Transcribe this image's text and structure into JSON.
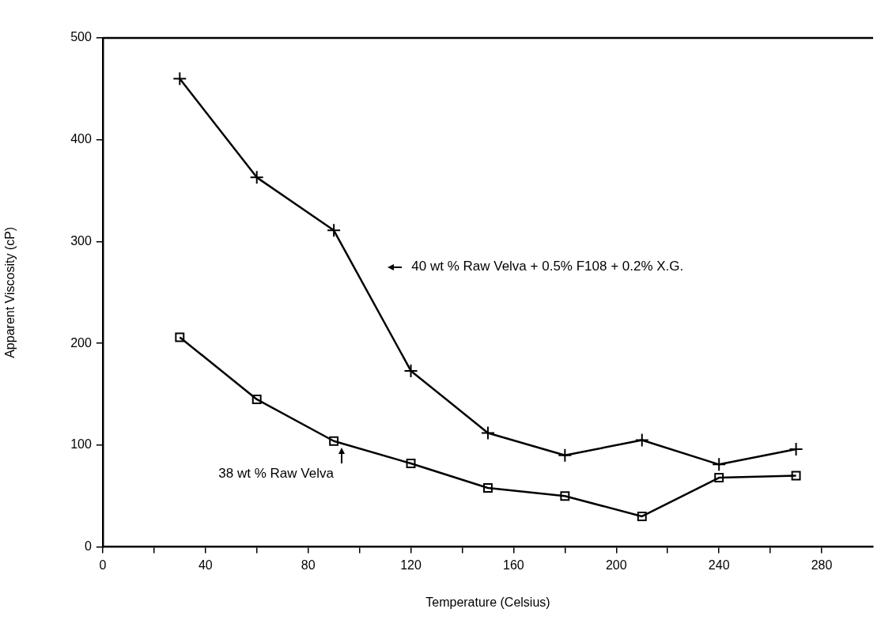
{
  "chart_data": {
    "type": "line",
    "xlabel": "Temperature (Celsius)",
    "ylabel": "Apparent Viscosity (cP)",
    "x": [
      30,
      60,
      90,
      120,
      150,
      180,
      210,
      240,
      270
    ],
    "series": [
      {
        "color": "#000000",
        "marker": "cross",
        "values": [
          460,
          363,
          311,
          173,
          112,
          90,
          105,
          81,
          96
        ]
      },
      {
        "color": "#000000",
        "marker": "square",
        "values": [
          206,
          145,
          104,
          82,
          58,
          50,
          30,
          68,
          70
        ]
      }
    ],
    "annotations": [
      "40 wt % Raw Velva + 0.5% F108 + 0.2% X.G.",
      {
        "text": "38 wt % Raw Velva",
        "x": 93,
        "y": 101
      }
    ],
    "xlim": [
      0,
      300
    ],
    "xticks": [
      0,
      {
        "value": 20,
        "label": null
      },
      40,
      {
        "value": 60,
        "label": null
      },
      80,
      {
        "value": 100,
        "label": null
      },
      120,
      {
        "value": 140,
        "label": null
      },
      160,
      {
        "value": 180,
        "label": null
      },
      200,
      {
        "value": 220,
        "label": null
      },
      240,
      {
        "value": 260,
        "label": null
      },
      280
    ],
    "ylim": [
      0,
      500
    ],
    "yticks": [
      0,
      100,
      200,
      300,
      400,
      500
    ],
    "grid": false,
    "legend": false,
    "line_style": "solid"
  }
}
